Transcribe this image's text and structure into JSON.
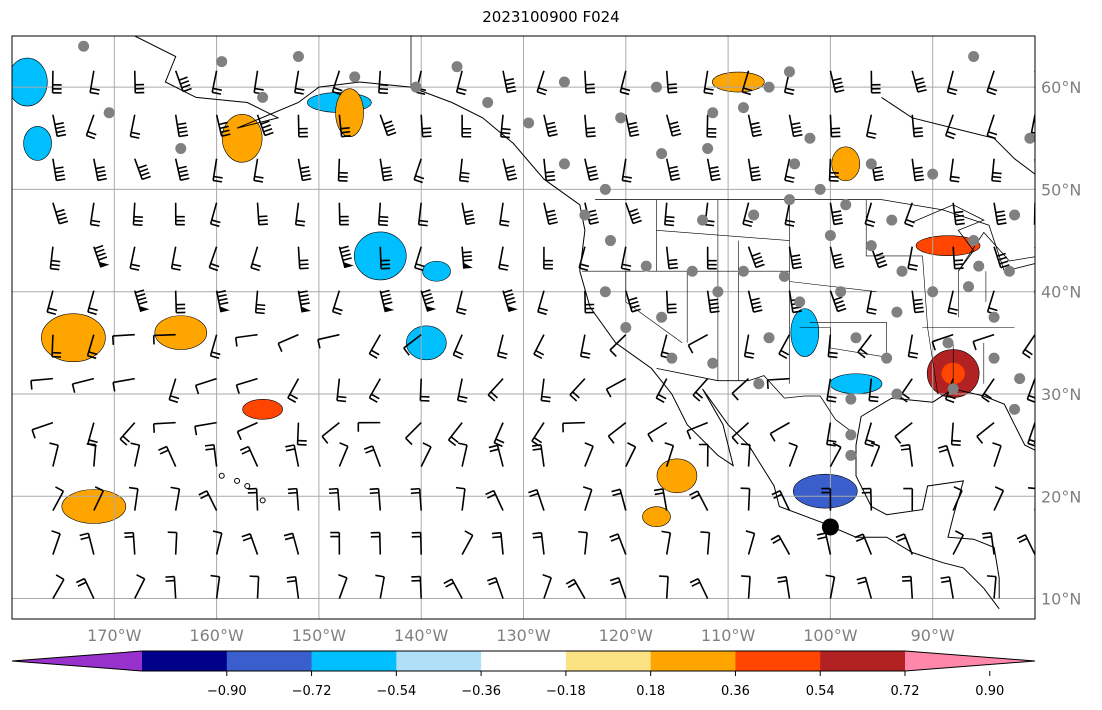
{
  "title": "2023100900 F024",
  "map": {
    "lon_range": [
      -180,
      -80
    ],
    "lat_range": [
      8,
      65
    ],
    "lon_ticks": [
      {
        "value": -170,
        "label": "170°W"
      },
      {
        "value": -160,
        "label": "160°W"
      },
      {
        "value": -150,
        "label": "150°W"
      },
      {
        "value": -140,
        "label": "140°W"
      },
      {
        "value": -130,
        "label": "130°W"
      },
      {
        "value": -120,
        "label": "120°W"
      },
      {
        "value": -110,
        "label": "110°W"
      },
      {
        "value": -100,
        "label": "100°W"
      },
      {
        "value": -90,
        "label": "90°W"
      }
    ],
    "lat_ticks": [
      {
        "value": 10,
        "label": "10°N"
      },
      {
        "value": 20,
        "label": "20°N"
      },
      {
        "value": 30,
        "label": "30°N"
      },
      {
        "value": 40,
        "label": "40°N"
      },
      {
        "value": 50,
        "label": "50°N"
      },
      {
        "value": 60,
        "label": "60°N"
      }
    ],
    "grid": true
  },
  "colorbar": {
    "colors": [
      "#9932cc",
      "#00008b",
      "#3a5fcd",
      "#00bfff",
      "#b0e0f8",
      "#ffffff",
      "#fbe384",
      "#ffa500",
      "#ff4500",
      "#b22222",
      "#ff88aa"
    ],
    "tick_labels": [
      "−0.90",
      "−0.72",
      "−0.54",
      "−0.36",
      "−0.18",
      "0.18",
      "0.36",
      "0.54",
      "0.72",
      "0.90"
    ],
    "extend": "both"
  },
  "chart_data": {
    "type": "heatmap",
    "title": "2023100900 F024",
    "x_units": "longitude",
    "y_units": "latitude",
    "field_regions": [
      {
        "lon": -138.5,
        "lat": 42,
        "value": -0.5
      },
      {
        "lon": -139.5,
        "lat": 35,
        "value": -0.45
      },
      {
        "lon": -144.0,
        "lat": 43.5,
        "value": -0.4
      },
      {
        "lon": -148.0,
        "lat": 58.5,
        "value": -0.4
      },
      {
        "lon": -177.5,
        "lat": 54.5,
        "value": -0.4
      },
      {
        "lon": -178.5,
        "lat": 60.5,
        "value": -0.4
      },
      {
        "lon": -97.5,
        "lat": 31.0,
        "value": -0.45
      },
      {
        "lon": -100.5,
        "lat": 20.5,
        "value": -0.6
      },
      {
        "lon": -102.5,
        "lat": 36.0,
        "value": -0.4
      },
      {
        "lon": -155.5,
        "lat": 28.5,
        "value": 0.6
      },
      {
        "lon": -163.5,
        "lat": 36.0,
        "value": 0.4
      },
      {
        "lon": -174.0,
        "lat": 35.5,
        "value": 0.4
      },
      {
        "lon": -117.0,
        "lat": 18.0,
        "value": 0.5
      },
      {
        "lon": -115.0,
        "lat": 22.0,
        "value": 0.45
      },
      {
        "lon": -88.0,
        "lat": 32.0,
        "value": 0.75
      },
      {
        "lon": -88.5,
        "lat": 44.5,
        "value": 0.6
      },
      {
        "lon": -98.5,
        "lat": 52.5,
        "value": 0.5
      },
      {
        "lon": -157.5,
        "lat": 55.0,
        "value": 0.4
      },
      {
        "lon": -109.0,
        "lat": 60.5,
        "value": 0.4
      },
      {
        "lon": -172.0,
        "lat": 19.0,
        "value": 0.4
      },
      {
        "lon": -147.0,
        "lat": 57.5,
        "value": 0.4
      }
    ],
    "observation_points": [
      {
        "lon": -159.5,
        "lat": 62.5
      },
      {
        "lon": -170.5,
        "lat": 57.5
      },
      {
        "lon": -152.0,
        "lat": 63.0
      },
      {
        "lon": -146.5,
        "lat": 61.0
      },
      {
        "lon": -136.5,
        "lat": 62.0
      },
      {
        "lon": -126.0,
        "lat": 60.5
      },
      {
        "lon": -117.0,
        "lat": 60.0
      },
      {
        "lon": -106.0,
        "lat": 60.0
      },
      {
        "lon": -103.5,
        "lat": 52.5
      },
      {
        "lon": -101.0,
        "lat": 50.0
      },
      {
        "lon": -112.0,
        "lat": 54.0
      },
      {
        "lon": -116.5,
        "lat": 53.5
      },
      {
        "lon": -122.0,
        "lat": 50.0
      },
      {
        "lon": -124.0,
        "lat": 47.5
      },
      {
        "lon": -121.5,
        "lat": 45.0
      },
      {
        "lon": -122.0,
        "lat": 40.0
      },
      {
        "lon": -118.0,
        "lat": 42.5
      },
      {
        "lon": -113.5,
        "lat": 42.0
      },
      {
        "lon": -111.0,
        "lat": 40.0
      },
      {
        "lon": -108.5,
        "lat": 42.0
      },
      {
        "lon": -104.5,
        "lat": 41.5
      },
      {
        "lon": -100.0,
        "lat": 45.5
      },
      {
        "lon": -96.0,
        "lat": 44.5
      },
      {
        "lon": -93.0,
        "lat": 42.0
      },
      {
        "lon": -90.0,
        "lat": 40.0
      },
      {
        "lon": -86.5,
        "lat": 40.5
      },
      {
        "lon": -84.0,
        "lat": 37.5
      },
      {
        "lon": -88.5,
        "lat": 35.0
      },
      {
        "lon": -94.5,
        "lat": 33.5
      },
      {
        "lon": -97.5,
        "lat": 35.5
      },
      {
        "lon": -106.0,
        "lat": 35.5
      },
      {
        "lon": -111.5,
        "lat": 33.0
      },
      {
        "lon": -115.5,
        "lat": 33.5
      },
      {
        "lon": -107.0,
        "lat": 31.0
      },
      {
        "lon": -98.0,
        "lat": 29.5
      },
      {
        "lon": -93.5,
        "lat": 30.0
      },
      {
        "lon": -88.0,
        "lat": 30.5
      },
      {
        "lon": -82.0,
        "lat": 28.5
      },
      {
        "lon": -98.0,
        "lat": 26.0
      },
      {
        "lon": -98.0,
        "lat": 24.0
      },
      {
        "lon": -98.5,
        "lat": 48.5
      },
      {
        "lon": -104.0,
        "lat": 61.5
      },
      {
        "lon": -96.0,
        "lat": 52.5
      },
      {
        "lon": -90.0,
        "lat": 51.5
      },
      {
        "lon": -86.0,
        "lat": 45.0
      },
      {
        "lon": -85.5,
        "lat": 42.5
      },
      {
        "lon": -82.5,
        "lat": 42.0
      },
      {
        "lon": -82.0,
        "lat": 47.5
      },
      {
        "lon": -80.5,
        "lat": 55.0
      },
      {
        "lon": -86.0,
        "lat": 63.0
      },
      {
        "lon": -81.5,
        "lat": 31.5
      },
      {
        "lon": -84.0,
        "lat": 33.5
      },
      {
        "lon": -93.5,
        "lat": 38.0
      },
      {
        "lon": -99.0,
        "lat": 40.0
      },
      {
        "lon": -103.0,
        "lat": 39.0
      },
      {
        "lon": -116.5,
        "lat": 37.5
      },
      {
        "lon": -120.0,
        "lat": 36.5
      },
      {
        "lon": -126.0,
        "lat": 52.5
      },
      {
        "lon": -112.5,
        "lat": 47.0
      },
      {
        "lon": -107.5,
        "lat": 47.5
      },
      {
        "lon": -104.0,
        "lat": 49.0
      },
      {
        "lon": -94.0,
        "lat": 47.0
      },
      {
        "lon": -140.5,
        "lat": 60.0
      },
      {
        "lon": -173.0,
        "lat": 64.0
      },
      {
        "lon": -163.5,
        "lat": 54.0
      },
      {
        "lon": -155.5,
        "lat": 59.0
      },
      {
        "lon": -133.5,
        "lat": 58.5
      },
      {
        "lon": -129.5,
        "lat": 56.5
      },
      {
        "lon": -120.5,
        "lat": 57.0
      },
      {
        "lon": -111.5,
        "lat": 57.5
      },
      {
        "lon": -108.5,
        "lat": 58.0
      },
      {
        "lon": -102.0,
        "lat": 55.0
      }
    ],
    "highlight_point": {
      "lon": -100.0,
      "lat": 17.0
    }
  }
}
